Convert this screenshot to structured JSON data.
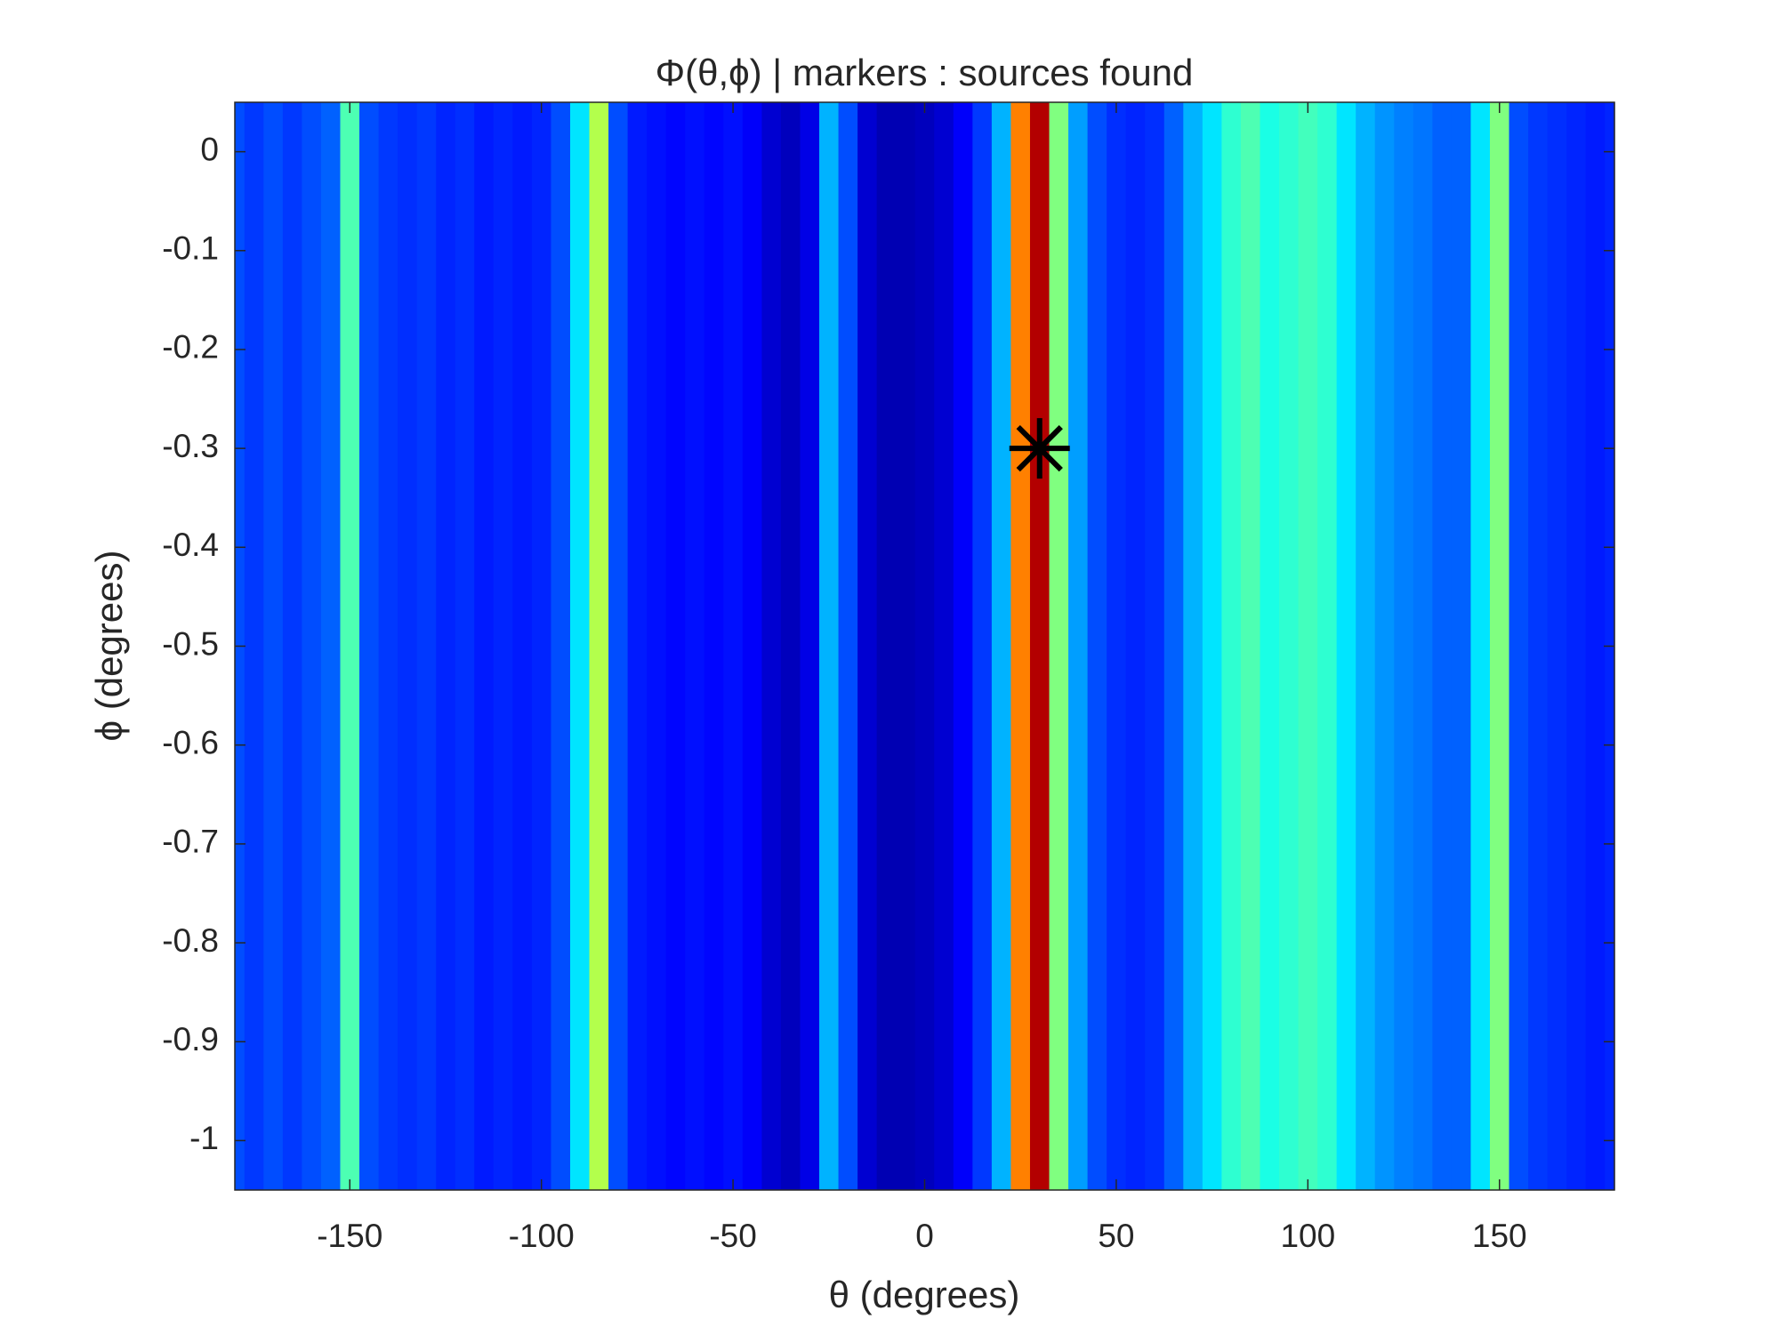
{
  "chart_data": {
    "type": "heatmap",
    "title": "Φ(θ,ϕ)   |  markers : sources found",
    "x_label": "θ (degrees)",
    "y_label": "ϕ (degrees)",
    "x": [
      -180,
      -175,
      -170,
      -165,
      -160,
      -155,
      -150,
      -145,
      -140,
      -135,
      -130,
      -125,
      -120,
      -115,
      -110,
      -105,
      -100,
      -95,
      -90,
      -85,
      -80,
      -75,
      -70,
      -65,
      -60,
      -55,
      -50,
      -45,
      -40,
      -35,
      -30,
      -25,
      -20,
      -15,
      -10,
      -5,
      0,
      5,
      10,
      15,
      20,
      25,
      30,
      35,
      40,
      45,
      50,
      55,
      60,
      65,
      70,
      75,
      80,
      85,
      90,
      95,
      100,
      105,
      110,
      115,
      120,
      125,
      130,
      135,
      140,
      145,
      150,
      155,
      160,
      165,
      170,
      175,
      180
    ],
    "values": [
      0.2,
      0.18,
      0.2,
      0.18,
      0.2,
      0.22,
      0.45,
      0.2,
      0.18,
      0.17,
      0.18,
      0.16,
      0.17,
      0.15,
      0.16,
      0.15,
      0.16,
      0.2,
      0.35,
      0.55,
      0.2,
      0.15,
      0.14,
      0.13,
      0.14,
      0.13,
      0.14,
      0.12,
      0.08,
      0.06,
      0.1,
      0.3,
      0.2,
      0.08,
      0.05,
      0.05,
      0.06,
      0.08,
      0.12,
      0.18,
      0.3,
      0.75,
      0.95,
      0.5,
      0.28,
      0.2,
      0.17,
      0.16,
      0.17,
      0.22,
      0.3,
      0.35,
      0.42,
      0.45,
      0.4,
      0.42,
      0.44,
      0.42,
      0.35,
      0.3,
      0.27,
      0.25,
      0.24,
      0.22,
      0.22,
      0.35,
      0.5,
      0.2,
      0.18,
      0.17,
      0.16,
      0.15,
      0.16
    ],
    "clim": [
      0,
      1
    ],
    "colormap": "jet",
    "markers": {
      "x": [
        30
      ],
      "y": [
        -0.3
      ],
      "color": "#000000"
    },
    "xlim": [
      -180,
      180
    ],
    "xticks": [
      -150,
      -100,
      -50,
      0,
      50,
      100,
      150
    ],
    "ylim": [
      -1.05,
      0.05
    ],
    "yticks": [
      0,
      -0.1,
      -0.2,
      -0.3,
      -0.4,
      -0.5,
      -0.6,
      -0.7,
      -0.8,
      -0.9,
      -1
    ],
    "y_reversed": true
  }
}
